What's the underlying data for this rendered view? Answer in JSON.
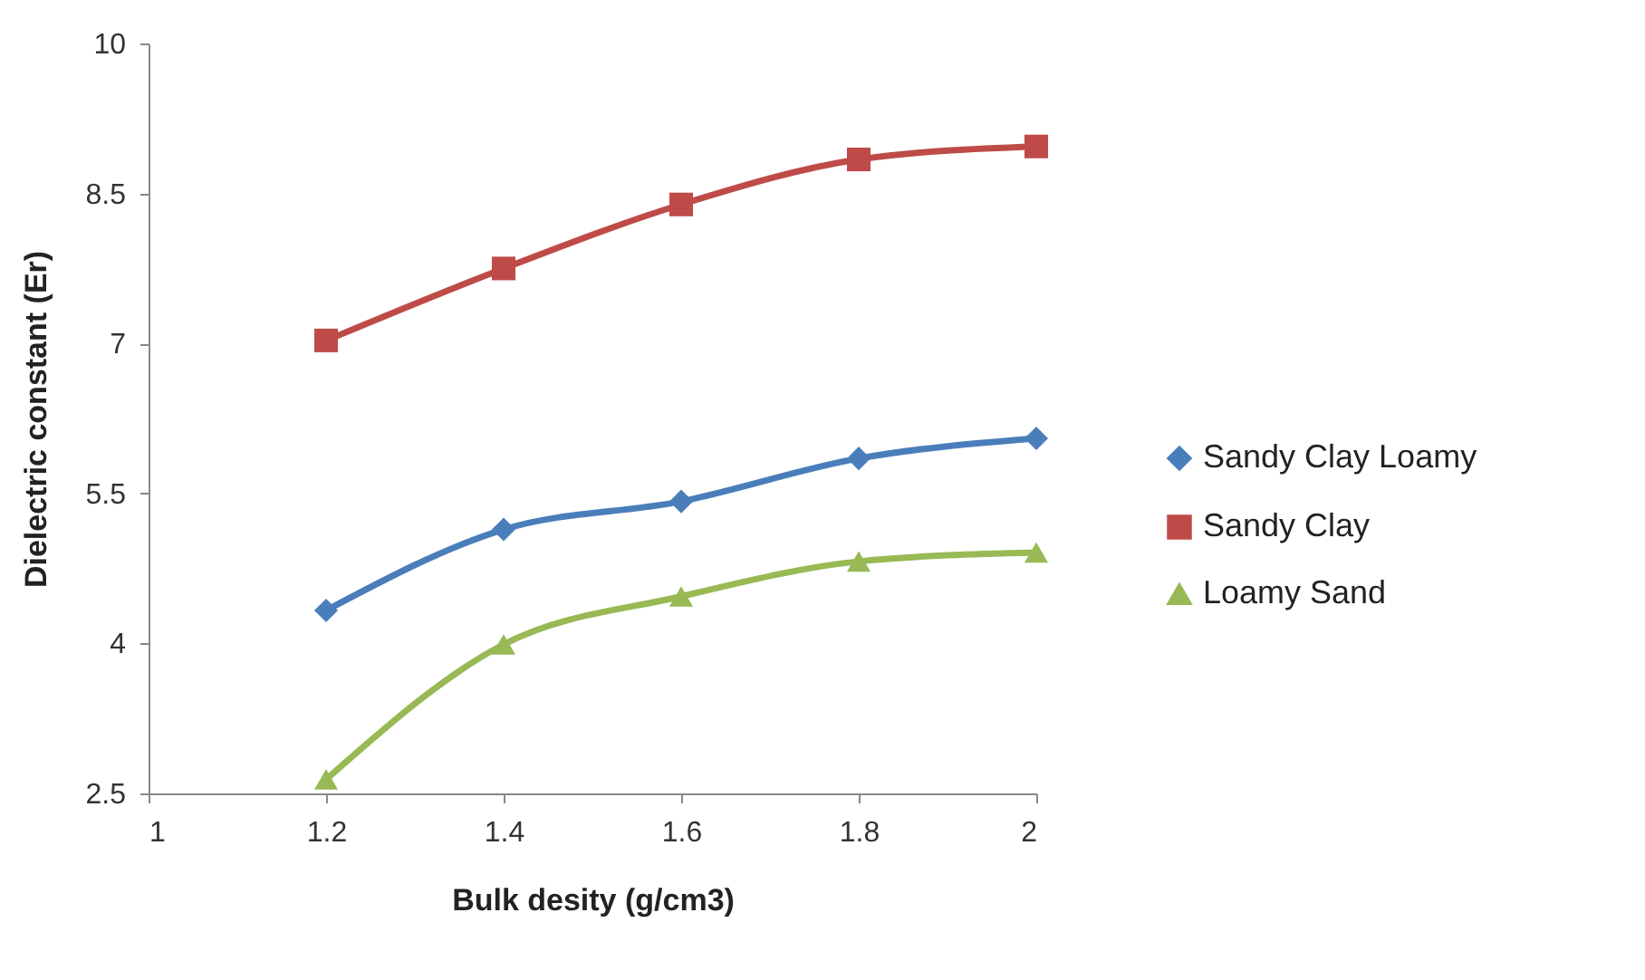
{
  "chart_data": {
    "type": "line",
    "xlabel": "Bulk desity (g/cm3)",
    "ylabel": "Dielectric constant (Er)",
    "x": [
      1.2,
      1.4,
      1.6,
      1.8,
      2
    ],
    "series": [
      {
        "name": "Sandy Clay Loamy",
        "color": "#4a7ebb",
        "marker": "diamond",
        "values": [
          4.33,
          5.14,
          5.42,
          5.85,
          6.05
        ]
      },
      {
        "name": "Sandy Clay",
        "color": "#be4b48",
        "marker": "square",
        "values": [
          7.03,
          7.75,
          8.39,
          8.84,
          8.97
        ]
      },
      {
        "name": "Loamy Sand",
        "color": "#98b954",
        "marker": "triangle",
        "values": [
          2.64,
          3.99,
          4.47,
          4.82,
          4.91
        ]
      }
    ],
    "xlim": [
      1,
      2
    ],
    "xticks": [
      1,
      1.2,
      1.4,
      1.6,
      1.8,
      2
    ],
    "ylim": [
      2.5,
      10
    ],
    "yticks": [
      2.5,
      4,
      5.5,
      7,
      8.5,
      10
    ],
    "grid": false,
    "legend": "right",
    "line_style": "solid"
  }
}
